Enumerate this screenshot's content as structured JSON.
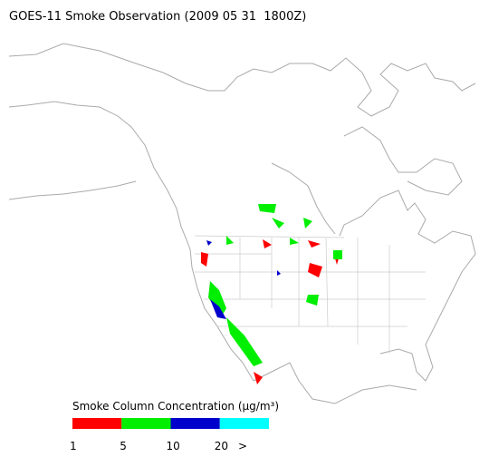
{
  "title": "GOES-11 Smoke Observation (2009 05 31  1800Z)",
  "legend": {
    "title": "Smoke Column Concentration (μg/m³)",
    "colors": [
      "#ff0000",
      "#00ee00",
      "#0000cc",
      "#00ffff"
    ],
    "ticks": [
      "1",
      "5",
      "10",
      "20",
      ">"
    ]
  }
}
